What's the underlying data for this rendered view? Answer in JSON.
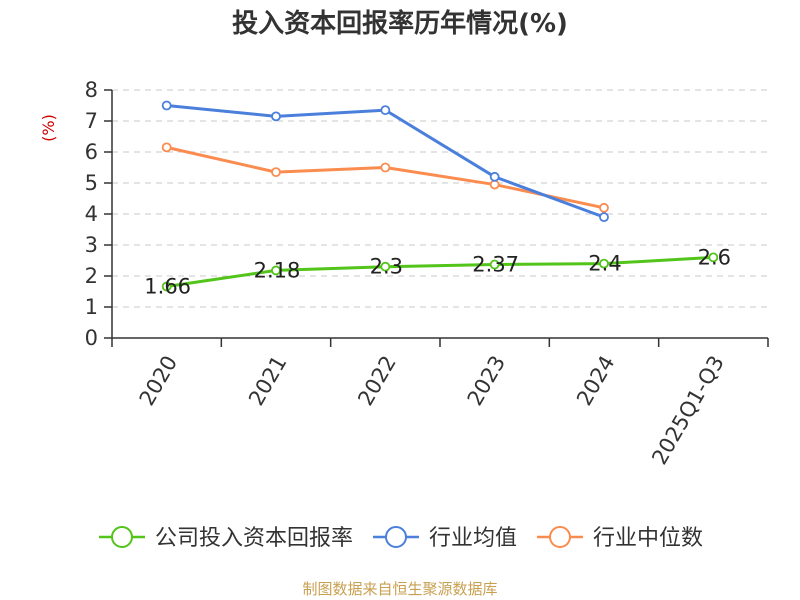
{
  "chart_data": {
    "type": "line",
    "title": "投入资本回报率历年情况(%)",
    "ylabel": "(%)",
    "xlabel": "",
    "ylim": [
      0,
      8
    ],
    "yticks": [
      0,
      1,
      2,
      3,
      4,
      5,
      6,
      7,
      8
    ],
    "grid": true,
    "legend_position": "bottom",
    "categories": [
      "2020",
      "2021",
      "2022",
      "2023",
      "2024",
      "2025Q1-Q3"
    ],
    "series": [
      {
        "name": "公司投入资本回报率",
        "color": "#52c41a",
        "values": [
          1.66,
          2.18,
          2.3,
          2.37,
          2.4,
          2.6
        ],
        "labels": [
          "1.66",
          "2.18",
          "2.3",
          "2.37",
          "2.4",
          "2.6"
        ]
      },
      {
        "name": "行业均值",
        "color": "#4a7fdc",
        "values": [
          7.5,
          7.15,
          7.35,
          5.2,
          3.9,
          null
        ]
      },
      {
        "name": "行业中位数",
        "color": "#fa8c4f",
        "values": [
          6.15,
          5.35,
          5.5,
          4.95,
          4.2,
          null
        ]
      }
    ]
  },
  "footer": {
    "source_text": "制图数据来自恒生聚源数据库"
  },
  "colors": {
    "unit_label": "#cc0000",
    "source_text": "#c8a050"
  }
}
